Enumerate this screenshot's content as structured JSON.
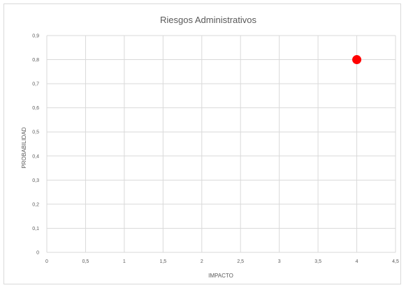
{
  "chart_data": {
    "type": "scatter",
    "title": "Riesgos Administrativos",
    "xlabel": "IMPACTO",
    "ylabel": "PROBABILIDAD",
    "xlim": [
      0,
      4.5
    ],
    "ylim": [
      0,
      0.9
    ],
    "x_ticks": [
      "0",
      "0,5",
      "1",
      "1,5",
      "2",
      "2,5",
      "3",
      "3,5",
      "4",
      "4,5"
    ],
    "y_ticks": [
      "0",
      "0,1",
      "0,2",
      "0,3",
      "0,4",
      "0,5",
      "0,6",
      "0,7",
      "0,8",
      "0,9"
    ],
    "grid": true,
    "legend": "none",
    "series": [
      {
        "points": [
          {
            "x": 4,
            "y": 0.8
          }
        ],
        "color": "#ff0000"
      }
    ]
  },
  "colors": {
    "grid": "#d9d9d9",
    "text": "#595959",
    "marker": "#ff0000"
  }
}
